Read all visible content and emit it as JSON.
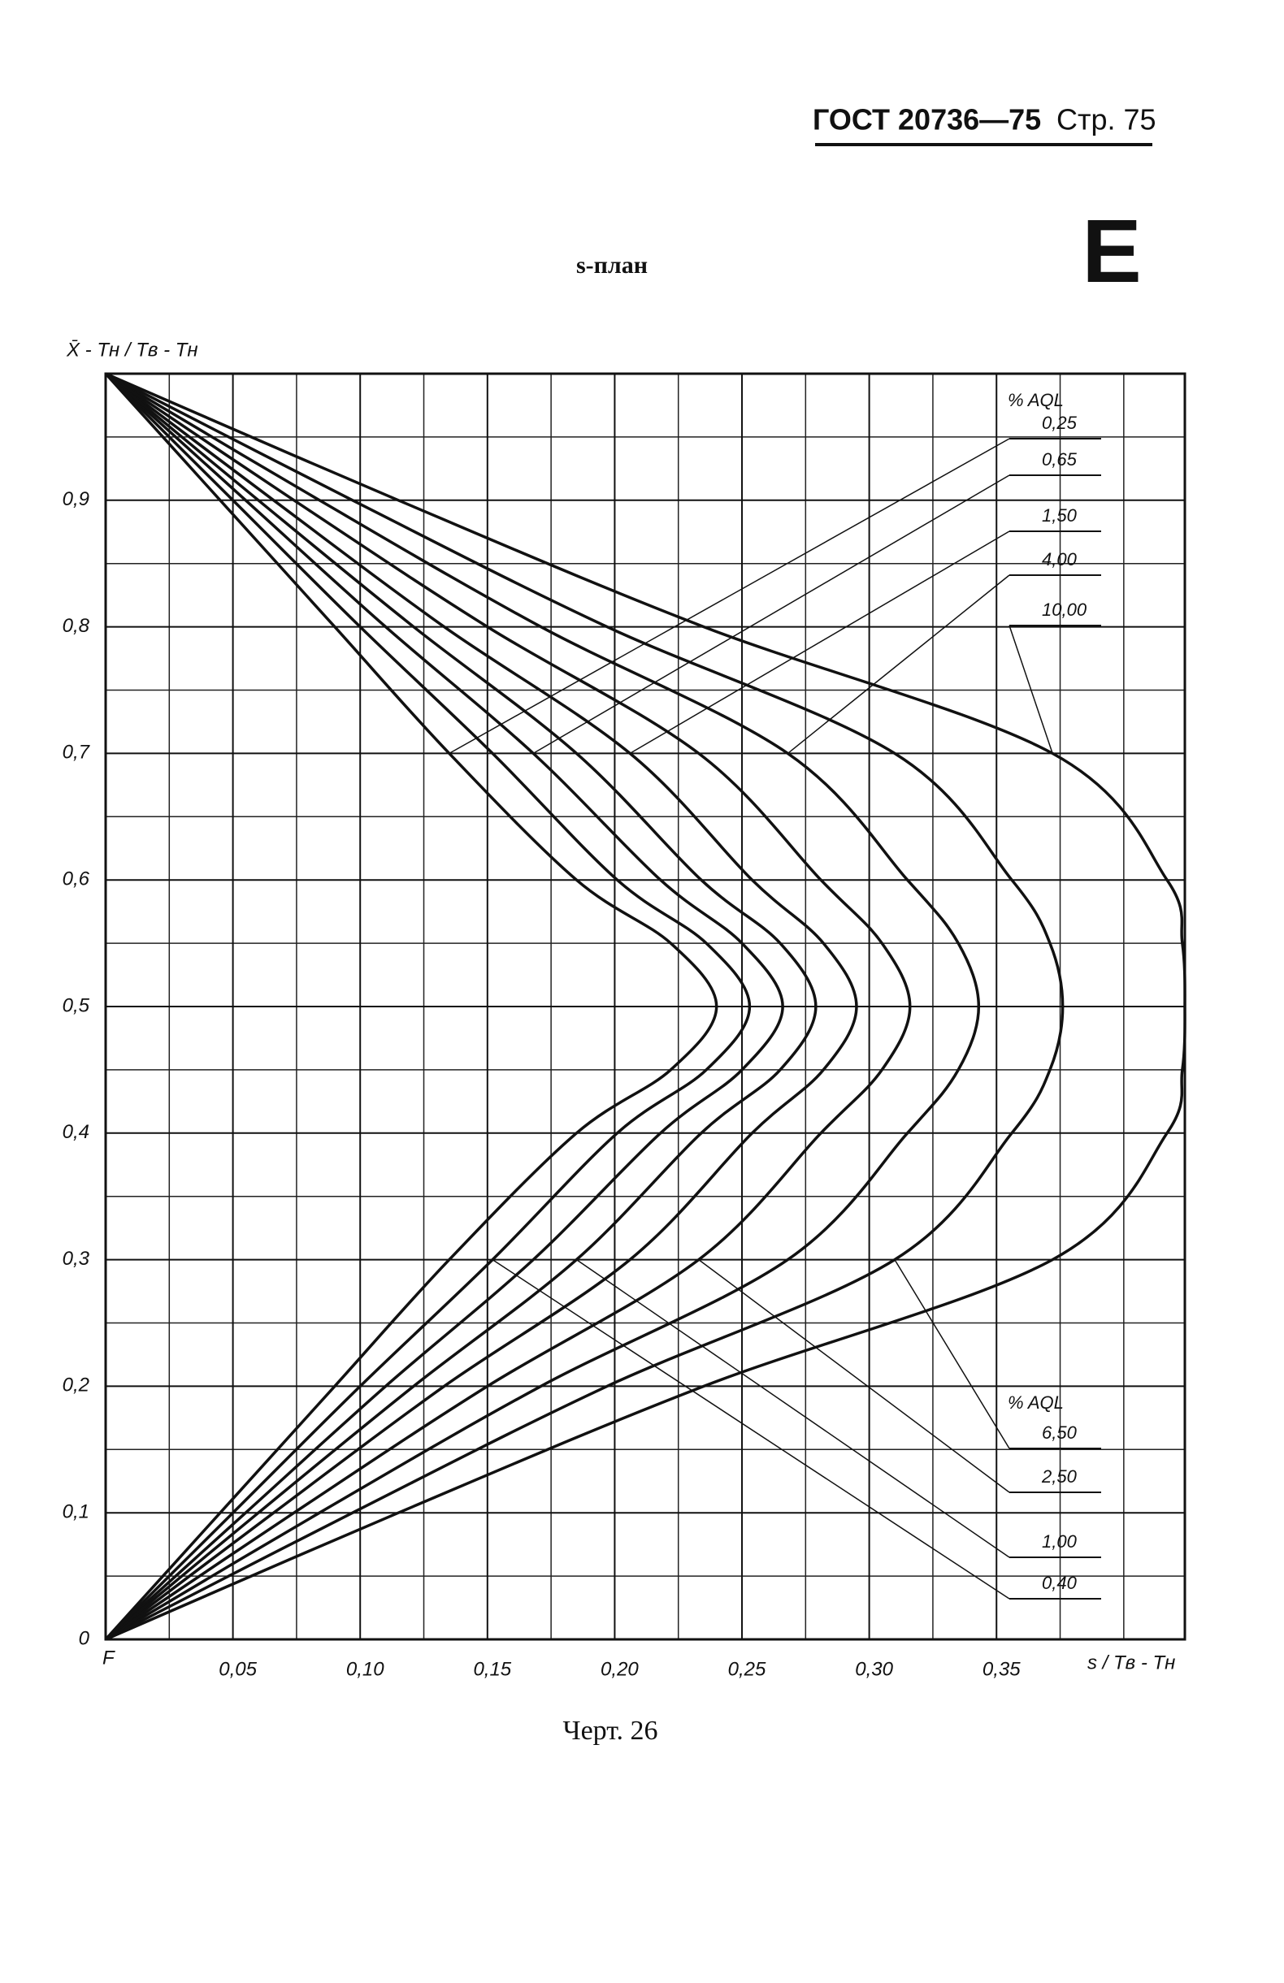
{
  "header": {
    "standard": "ГОСТ 20736—75",
    "page": "Стр. 75"
  },
  "plan_title": "s-план",
  "plan_letter": "E",
  "caption": "Черт. 26",
  "chart_data": {
    "type": "line",
    "y_axis_label": "X̄ - Tн / Tв - Tн",
    "x_axis_label": "s / Tв - Tн",
    "origin_label": "F",
    "legend_title": "% AQL",
    "color": "#111111",
    "grid": true,
    "xlim": [
      0,
      0.424
    ],
    "ylim": [
      0,
      1
    ],
    "xticks": [
      {
        "value": 0.05,
        "label": "0,05"
      },
      {
        "value": 0.1,
        "label": "0,10"
      },
      {
        "value": 0.15,
        "label": "0,15"
      },
      {
        "value": 0.2,
        "label": "0,20"
      },
      {
        "value": 0.25,
        "label": "0,25"
      },
      {
        "value": 0.3,
        "label": "0,30"
      },
      {
        "value": 0.35,
        "label": "0,35"
      }
    ],
    "yticks": [
      0,
      {
        "value": 0.1,
        "label": "0,1"
      },
      {
        "value": 0.2,
        "label": "0,2"
      },
      {
        "value": 0.3,
        "label": "0,3"
      },
      {
        "value": 0.4,
        "label": "0,4"
      },
      {
        "value": 0.5,
        "label": "0,5"
      },
      {
        "value": 0.6,
        "label": "0,6"
      },
      {
        "value": 0.7,
        "label": "0,7"
      },
      {
        "value": 0.8,
        "label": "0,8"
      },
      {
        "value": 0.9,
        "label": "0,9"
      }
    ],
    "y": [
      1,
      0.9,
      0.8,
      0.7,
      0.6,
      0.55,
      0.5,
      0.45,
      0.4,
      0.3,
      0.2,
      0.1,
      0
    ],
    "series": [
      {
        "name": "0,25",
        "x": [
          0,
          0.045,
          0.09,
          0.135,
          0.185,
          0.222,
          0.24,
          0.222,
          0.185,
          0.135,
          0.09,
          0.045,
          0
        ]
      },
      {
        "name": "0,65",
        "x": [
          0,
          0.055,
          0.11,
          0.168,
          0.218,
          0.25,
          0.266,
          0.25,
          0.218,
          0.168,
          0.11,
          0.055,
          0
        ]
      },
      {
        "name": "1,50",
        "x": [
          0,
          0.066,
          0.133,
          0.206,
          0.254,
          0.282,
          0.295,
          0.282,
          0.254,
          0.206,
          0.133,
          0.066,
          0
        ]
      },
      {
        "name": "4,00",
        "x": [
          0,
          0.084,
          0.171,
          0.268,
          0.315,
          0.335,
          0.343,
          0.335,
          0.315,
          0.268,
          0.171,
          0.084,
          0
        ]
      },
      {
        "name": "10,00",
        "x": [
          0,
          0.115,
          0.235,
          0.372,
          0.417,
          0.423,
          0.424,
          0.423,
          0.417,
          0.372,
          0.235,
          0.115,
          0
        ]
      },
      {
        "name": "6,50",
        "x": [
          0,
          0.097,
          0.197,
          0.31,
          0.356,
          0.371,
          0.376,
          0.371,
          0.356,
          0.31,
          0.197,
          0.097,
          0
        ]
      },
      {
        "name": "2,50",
        "x": [
          0,
          0.074,
          0.15,
          0.233,
          0.281,
          0.305,
          0.316,
          0.305,
          0.281,
          0.233,
          0.15,
          0.074,
          0
        ]
      },
      {
        "name": "1,00",
        "x": [
          0,
          0.06,
          0.121,
          0.185,
          0.234,
          0.265,
          0.279,
          0.265,
          0.234,
          0.185,
          0.121,
          0.06,
          0
        ]
      },
      {
        "name": "0,40",
        "x": [
          0,
          0.05,
          0.1,
          0.152,
          0.201,
          0.236,
          0.253,
          0.236,
          0.201,
          0.152,
          0.1,
          0.05,
          0
        ]
      }
    ]
  }
}
